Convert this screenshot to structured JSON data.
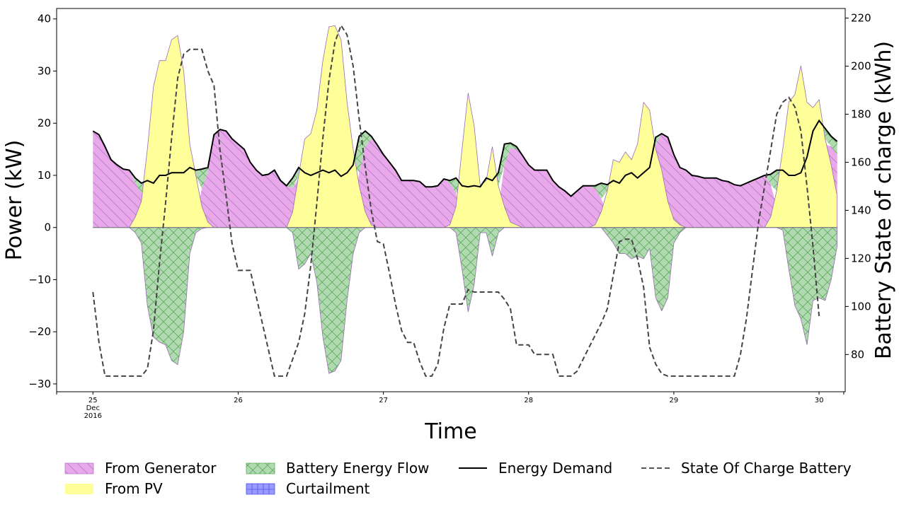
{
  "chart_data": {
    "type": "area",
    "xlabel": "Time",
    "ylabel": "Power (kW)",
    "y2label": "Battery State of charge (kWh)",
    "xlim": [
      24.75,
      30.18
    ],
    "ylim": [
      -31.5,
      42
    ],
    "y2lim": [
      64.5,
      224
    ],
    "x_ticks": [
      {
        "value": 25,
        "lines": [
          "25",
          "Dec",
          "2016"
        ]
      },
      {
        "value": 26,
        "lines": [
          "26"
        ]
      },
      {
        "value": 27,
        "lines": [
          "27"
        ]
      },
      {
        "value": 28,
        "lines": [
          "28"
        ]
      },
      {
        "value": 29,
        "lines": [
          "29"
        ]
      },
      {
        "value": 30,
        "lines": [
          "30"
        ]
      }
    ],
    "y_ticks": [
      -30,
      -20,
      -10,
      0,
      10,
      20,
      30,
      40
    ],
    "y2_ticks": [
      80,
      100,
      120,
      140,
      160,
      180,
      200,
      220
    ],
    "x_step": 0.041667,
    "x_start": 25.0,
    "demand": [
      18.5,
      17.8,
      15.5,
      13,
      12,
      11.2,
      11,
      9.5,
      8.5,
      9,
      8.5,
      10,
      10,
      10.5,
      10.5,
      10.5,
      11.5,
      11,
      11.2,
      11.5,
      17.8,
      18.8,
      18.5,
      17,
      16,
      15,
      12.5,
      11,
      10,
      10.2,
      11,
      9,
      8,
      9.5,
      11.5,
      10.5,
      10,
      10.5,
      11,
      10.5,
      11,
      9.8,
      10.5,
      12,
      17.5,
      18.5,
      17.5,
      15.8,
      14,
      12.5,
      11,
      9,
      9,
      9,
      8.8,
      7.8,
      7.8,
      8,
      9.3,
      9,
      9.5,
      8,
      7.8,
      8,
      7.8,
      9.5,
      9,
      10.5,
      16,
      16.2,
      15.5,
      13.8,
      12,
      11,
      11,
      11,
      9,
      7.8,
      7,
      6,
      7,
      8,
      8,
      8,
      8.5,
      8.2,
      9,
      8.5,
      10,
      10.5,
      9.5,
      10.5,
      11.5,
      17.3,
      18,
      17.3,
      14,
      11.5,
      11,
      10,
      9.8,
      9.5,
      9.5,
      9.5,
      9,
      8.8,
      8.2,
      8,
      8.5,
      9,
      9.5,
      10,
      10.2,
      11,
      11,
      10,
      10,
      10.5,
      13.5,
      18.5,
      20.5,
      19,
      17.5,
      16.5
    ],
    "pv_total": [
      0,
      0,
      0,
      0,
      0,
      0,
      0,
      2,
      5,
      15,
      27,
      32,
      32,
      36,
      36.8,
      30,
      16,
      10,
      4,
      1,
      0,
      0,
      0,
      0,
      0,
      0,
      0,
      0,
      0,
      0,
      0,
      0,
      0,
      3,
      10,
      17,
      18,
      22.5,
      32,
      38.5,
      38.7,
      36,
      24,
      15,
      8,
      3,
      0.5,
      0,
      0,
      0,
      0,
      0,
      0,
      0,
      0,
      0,
      0,
      0,
      0,
      0.5,
      4,
      15,
      25.8,
      19.5,
      8,
      9,
      15.5,
      8,
      4,
      1,
      0.5,
      0,
      0,
      0,
      0,
      0,
      0,
      0,
      0,
      0,
      0,
      0,
      0,
      0.5,
      3,
      7,
      13,
      12.5,
      14.5,
      13,
      16,
      24,
      22.5,
      15,
      11,
      5,
      1.5,
      0.5,
      0,
      0,
      0,
      0,
      0,
      0,
      0,
      0,
      0,
      0,
      0,
      0,
      0,
      0,
      2,
      7,
      15,
      24,
      25.5,
      31,
      24,
      23,
      24.5,
      17,
      12,
      6,
      2,
      0.5,
      0
    ],
    "battery": [
      0,
      0,
      0,
      0,
      0,
      0,
      0,
      -1,
      -3,
      -15,
      -21,
      -22,
      -22.5,
      -25.5,
      -26.3,
      -20,
      -5,
      -1,
      -0.2,
      0,
      0,
      0,
      0,
      0,
      0,
      0,
      0,
      0,
      0,
      0,
      0,
      0,
      0,
      -1,
      -8,
      -7,
      -5,
      -10.5,
      -21,
      -28,
      -27.5,
      -25.5,
      -14,
      -5,
      -1,
      0,
      0,
      0,
      0,
      0,
      0,
      0,
      0,
      0,
      0,
      0,
      0,
      0,
      0,
      0,
      -1,
      -8,
      -16.2,
      -11,
      -1,
      -1,
      -5.5,
      -1,
      0,
      0,
      0,
      0,
      0,
      0,
      0,
      0,
      0,
      0,
      0,
      0,
      0,
      0,
      0,
      0,
      0,
      -1.5,
      -3,
      -5,
      -5,
      -6,
      -5.5,
      -6,
      -4,
      -13.5,
      -16,
      -13.5,
      -3,
      -1,
      0,
      0,
      0,
      0,
      0,
      0,
      0,
      0,
      0,
      0,
      0,
      0,
      0,
      0,
      0,
      0,
      -0.5,
      -8,
      -15,
      -17.5,
      -22.5,
      -14,
      -13.5,
      -14,
      -10,
      -3.5,
      -1,
      0,
      0,
      0
    ],
    "soc": [
      106,
      85,
      71,
      71,
      71,
      71,
      71,
      71,
      71,
      74,
      90,
      118,
      143,
      170,
      195,
      205,
      207,
      207,
      207,
      198,
      192,
      165,
      146,
      126,
      115,
      115,
      115,
      104,
      93,
      82,
      71,
      71,
      71,
      78,
      85,
      97,
      117,
      143,
      170,
      194,
      210,
      217,
      213,
      200,
      178,
      158,
      140,
      127,
      126,
      114,
      101,
      90,
      85,
      85,
      77,
      71,
      71,
      76,
      91,
      101,
      101,
      101,
      107,
      106,
      106,
      106,
      106,
      106,
      103,
      99,
      84,
      84,
      84,
      80,
      80,
      80,
      80,
      71,
      71,
      71,
      73,
      78,
      83,
      88,
      93,
      99,
      113,
      127,
      128,
      128,
      120,
      108,
      83,
      76,
      72,
      71,
      71,
      71,
      71,
      71,
      71,
      71,
      71,
      71,
      71,
      71,
      71,
      80,
      95,
      115,
      135,
      150,
      165,
      180,
      185,
      187,
      183,
      173,
      150,
      125,
      96
    ],
    "series": [
      {
        "name": "From Generator",
        "color": "#e9a8ea",
        "hatch": "diagonal"
      },
      {
        "name": "From PV",
        "color": "#ffff99"
      },
      {
        "name": "Battery Energy Flow",
        "color": "#b2dab2",
        "hatch": "cross"
      },
      {
        "name": "Curtailment",
        "color": "#9999ff",
        "hatch": "grid"
      },
      {
        "name": "Energy Demand",
        "color": "#000000",
        "style": "solid"
      },
      {
        "name": "State Of Charge Battery",
        "color": "#555555",
        "style": "dashed"
      }
    ]
  }
}
